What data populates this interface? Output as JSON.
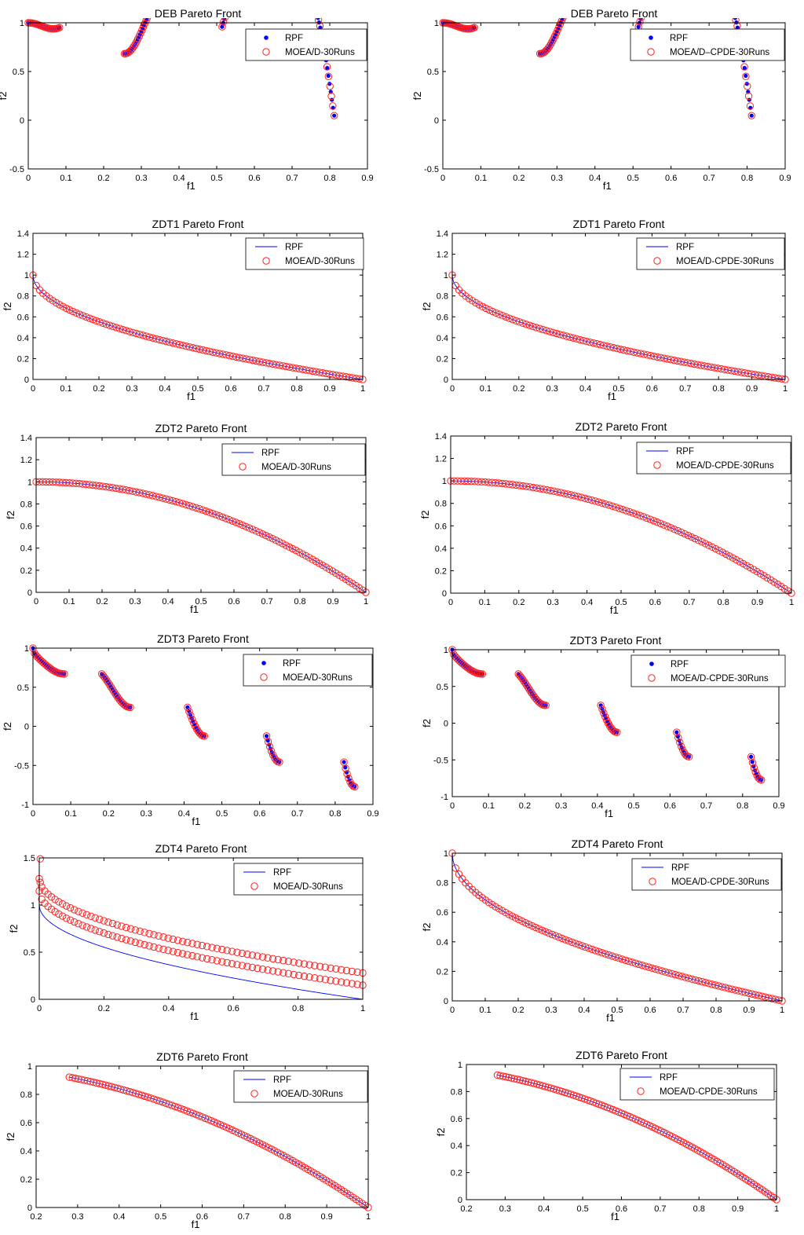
{
  "colors": {
    "rpf": "#0000ff",
    "moead": "#ff2020",
    "axis": "#000000",
    "background": "#ffffff"
  },
  "legend": {
    "marker_rpf_points": "filled-dot",
    "marker_rpf_line": "line",
    "marker_moead": "open-circle",
    "placement": "top-right"
  },
  "grid": false,
  "chart_data": [
    {
      "id": "deb-left",
      "type": "scatter",
      "title": "DEB Pareto Front",
      "xlabel": "f1",
      "ylabel": "f2",
      "xlim": [
        0,
        0.9
      ],
      "ylim": [
        -0.5,
        1
      ],
      "xticks": [
        "0",
        "0.1",
        "0.2",
        "0.3",
        "0.4",
        "0.5",
        "0.6",
        "0.7",
        "0.8",
        "0.9"
      ],
      "yticks": [
        "-0.5",
        "0",
        "0.5",
        "1"
      ],
      "problem": "DEB",
      "rpf_style": "points",
      "series": [
        {
          "name": "RPF",
          "marker": "dot"
        },
        {
          "name": "MOEA/D-30Runs",
          "marker": "circle"
        }
      ]
    },
    {
      "id": "deb-right",
      "type": "scatter",
      "title": "DEB Pareto Front",
      "xlabel": "f1",
      "ylabel": "f2",
      "xlim": [
        0,
        0.9
      ],
      "ylim": [
        -0.5,
        1
      ],
      "xticks": [
        "0",
        "0.1",
        "0.2",
        "0.3",
        "0.4",
        "0.5",
        "0.6",
        "0.7",
        "0.8",
        "0.9"
      ],
      "yticks": [
        "-0.5",
        "0",
        "0.5",
        "1"
      ],
      "problem": "DEB",
      "rpf_style": "points",
      "series": [
        {
          "name": "RPF",
          "marker": "dot"
        },
        {
          "name": "MOEA/D–CPDE-30Runs",
          "marker": "circle"
        }
      ]
    },
    {
      "id": "zdt1-left",
      "type": "scatter",
      "title": "ZDT1 Pareto Front",
      "xlabel": "f1",
      "ylabel": "f2",
      "xlim": [
        0,
        1
      ],
      "ylim": [
        0,
        1.4
      ],
      "xticks": [
        "0",
        "0.1",
        "0.2",
        "0.3",
        "0.4",
        "0.5",
        "0.6",
        "0.7",
        "0.8",
        "0.9",
        "1"
      ],
      "yticks": [
        "0",
        "0.2",
        "0.4",
        "0.6",
        "0.8",
        "1",
        "1.2",
        "1.4"
      ],
      "problem": "ZDT1",
      "rpf_style": "line",
      "series": [
        {
          "name": "RPF",
          "marker": "line"
        },
        {
          "name": "MOEA/D-30Runs",
          "marker": "circle"
        }
      ]
    },
    {
      "id": "zdt1-right",
      "type": "scatter",
      "title": "ZDT1 Pareto Front",
      "xlabel": "f1",
      "ylabel": "f2",
      "xlim": [
        0,
        1
      ],
      "ylim": [
        0,
        1.4
      ],
      "xticks": [
        "0",
        "0.1",
        "0.2",
        "0.3",
        "0.4",
        "0.5",
        "0.6",
        "0.7",
        "0.8",
        "0.9",
        "1"
      ],
      "yticks": [
        "0",
        "0.2",
        "0.4",
        "0.6",
        "0.8",
        "1",
        "1.2",
        "1.4"
      ],
      "problem": "ZDT1",
      "rpf_style": "line",
      "series": [
        {
          "name": "RPF",
          "marker": "line"
        },
        {
          "name": "MOEA/D-CPDE-30Runs",
          "marker": "circle"
        }
      ]
    },
    {
      "id": "zdt2-left",
      "type": "scatter",
      "title": "ZDT2 Pareto Front",
      "xlabel": "f1",
      "ylabel": "f2",
      "xlim": [
        0,
        1
      ],
      "ylim": [
        0,
        1.4
      ],
      "xticks": [
        "0",
        "0.1",
        "0.2",
        "0.3",
        "0.4",
        "0.5",
        "0.6",
        "0.7",
        "0.8",
        "0.9",
        "1"
      ],
      "yticks": [
        "0",
        "0.2",
        "0.4",
        "0.6",
        "0.8",
        "1",
        "1.2",
        "1.4"
      ],
      "problem": "ZDT2",
      "rpf_style": "line",
      "series": [
        {
          "name": "RPF",
          "marker": "line"
        },
        {
          "name": "MOEA/D-30Runs",
          "marker": "circle"
        }
      ]
    },
    {
      "id": "zdt2-right",
      "type": "scatter",
      "title": "ZDT2 Pareto Front",
      "xlabel": "f1",
      "ylabel": "f2",
      "xlim": [
        0,
        1
      ],
      "ylim": [
        0,
        1.4
      ],
      "xticks": [
        "0",
        "0.1",
        "0.2",
        "0.3",
        "0.4",
        "0.5",
        "0.6",
        "0.7",
        "0.8",
        "0.9",
        "1"
      ],
      "yticks": [
        "0",
        "0.2",
        "0.4",
        "0.6",
        "0.8",
        "1",
        "1.2",
        "1.4"
      ],
      "problem": "ZDT2",
      "rpf_style": "line",
      "series": [
        {
          "name": "RPF",
          "marker": "line"
        },
        {
          "name": "MOEA/D-CPDE-30Runs",
          "marker": "circle"
        }
      ]
    },
    {
      "id": "zdt3-left",
      "type": "scatter",
      "title": "ZDT3 Pareto Front",
      "xlabel": "f1",
      "ylabel": "f2",
      "xlim": [
        0,
        0.9
      ],
      "ylim": [
        -1,
        1
      ],
      "xticks": [
        "0",
        "0.1",
        "0.2",
        "0.3",
        "0.4",
        "0.5",
        "0.6",
        "0.7",
        "0.8",
        "0.9"
      ],
      "yticks": [
        "-1",
        "-0.5",
        "0",
        "0.5",
        "1"
      ],
      "problem": "ZDT3",
      "rpf_style": "points",
      "series": [
        {
          "name": "RPF",
          "marker": "dot"
        },
        {
          "name": "MOEA/D-30Runs",
          "marker": "circle"
        }
      ]
    },
    {
      "id": "zdt3-right",
      "type": "scatter",
      "title": "ZDT3 Pareto Front",
      "xlabel": "f1",
      "ylabel": "f2",
      "xlim": [
        0,
        0.9
      ],
      "ylim": [
        -1,
        1
      ],
      "xticks": [
        "0",
        "0.1",
        "0.2",
        "0.3",
        "0.4",
        "0.5",
        "0.6",
        "0.7",
        "0.8",
        "0.9"
      ],
      "yticks": [
        "-1",
        "-0.5",
        "0",
        "0.5",
        "1"
      ],
      "problem": "ZDT3",
      "rpf_style": "points",
      "series": [
        {
          "name": "RPF",
          "marker": "dot"
        },
        {
          "name": "MOEA/D-CPDE-30Runs",
          "marker": "circle"
        }
      ]
    },
    {
      "id": "zdt4-left",
      "type": "scatter",
      "title": "ZDT4 Pareto Front",
      "xlabel": "f1",
      "ylabel": "f2",
      "xlim": [
        0,
        1
      ],
      "ylim": [
        0,
        1.5
      ],
      "xticks": [
        "0",
        "0.2",
        "0.4",
        "0.6",
        "0.8",
        "1"
      ],
      "yticks": [
        "0",
        "0.5",
        "1",
        "1.5"
      ],
      "problem": "ZDT4-offset",
      "rpf_style": "line",
      "series": [
        {
          "name": "RPF",
          "marker": "line"
        },
        {
          "name": "MOEA/D-30Runs",
          "marker": "circle",
          "fronts_offset": [
            0.15,
            0.28
          ]
        }
      ]
    },
    {
      "id": "zdt4-right",
      "type": "scatter",
      "title": "ZDT4 Pareto Front",
      "xlabel": "f1",
      "ylabel": "f2",
      "xlim": [
        0,
        1
      ],
      "ylim": [
        0,
        1
      ],
      "xticks": [
        "0",
        "0.1",
        "0.2",
        "0.3",
        "0.4",
        "0.5",
        "0.6",
        "0.7",
        "0.8",
        "0.9",
        "1"
      ],
      "yticks": [
        "0",
        "0.2",
        "0.4",
        "0.6",
        "0.8",
        "1"
      ],
      "problem": "ZDT1",
      "rpf_style": "line",
      "series": [
        {
          "name": "RPF",
          "marker": "line"
        },
        {
          "name": "MOEA/D-CPDE-30Runs",
          "marker": "circle"
        }
      ]
    },
    {
      "id": "zdt6-left",
      "type": "scatter",
      "title": "ZDT6 Pareto Front",
      "xlabel": "f1",
      "ylabel": "f2",
      "xlim": [
        0.2,
        1
      ],
      "ylim": [
        0,
        1
      ],
      "xticks": [
        "0.2",
        "0.3",
        "0.4",
        "0.5",
        "0.6",
        "0.7",
        "0.8",
        "0.9",
        "1"
      ],
      "yticks": [
        "0",
        "0.2",
        "0.4",
        "0.6",
        "0.8",
        "1"
      ],
      "problem": "ZDT6",
      "rpf_style": "line",
      "f1_start": 0.28,
      "series": [
        {
          "name": "RPF",
          "marker": "line"
        },
        {
          "name": "MOEA/D-30Runs",
          "marker": "circle"
        }
      ]
    },
    {
      "id": "zdt6-right",
      "type": "scatter",
      "title": "ZDT6 Pareto Front",
      "xlabel": "f1",
      "ylabel": "f2",
      "xlim": [
        0.2,
        1
      ],
      "ylim": [
        0,
        1
      ],
      "xticks": [
        "0.2",
        "0.3",
        "0.4",
        "0.5",
        "0.6",
        "0.7",
        "0.8",
        "0.9",
        "1"
      ],
      "yticks": [
        "0",
        "0.2",
        "0.4",
        "0.6",
        "0.8",
        "1"
      ],
      "problem": "ZDT6",
      "rpf_style": "line",
      "f1_start": 0.28,
      "series": [
        {
          "name": "RPF",
          "marker": "line"
        },
        {
          "name": "MOEA/D-CPDE-30Runs",
          "marker": "circle"
        }
      ]
    }
  ]
}
